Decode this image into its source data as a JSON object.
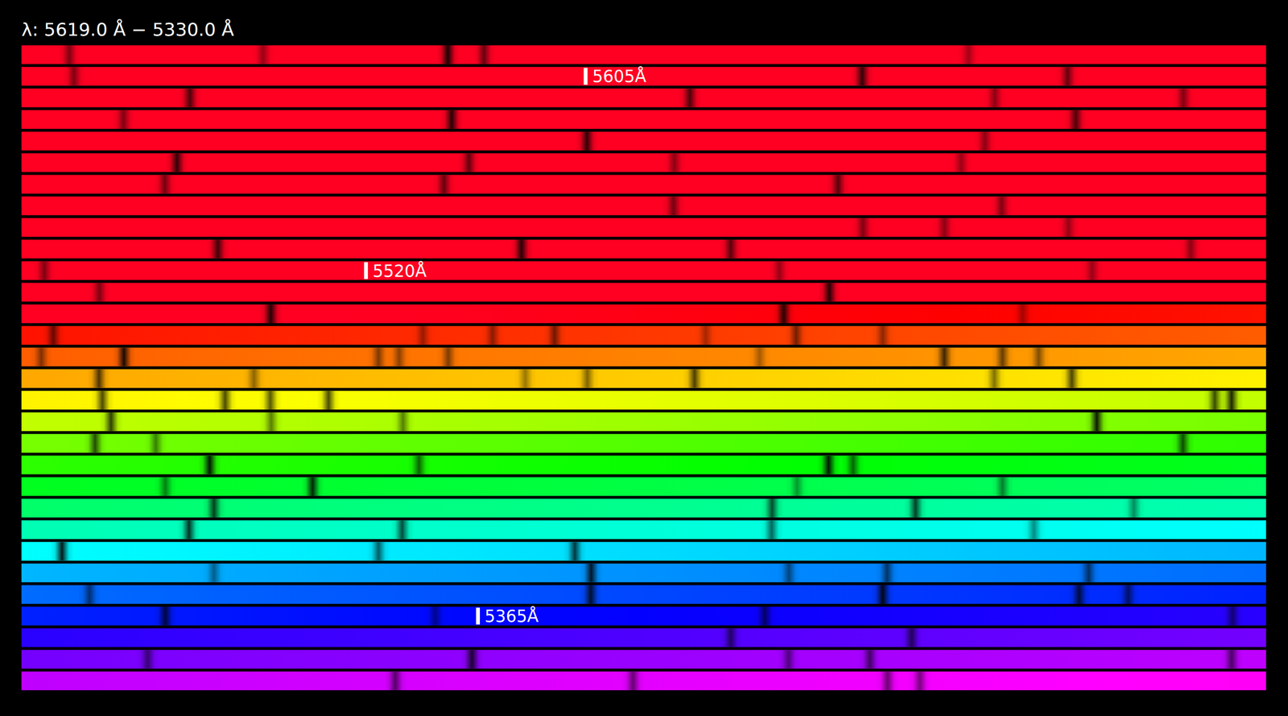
{
  "chart_data": {
    "type": "spectrum",
    "title": "λ: 5619.0 Å − 5330.0 Å",
    "xlim": [
      5619.0,
      5330.0
    ],
    "rows": 30,
    "annotations": [
      {
        "text": "5605Å",
        "wavelength": 5605
      },
      {
        "text": "5520Å",
        "wavelength": 5520
      },
      {
        "text": "5365Å",
        "wavelength": 5365
      }
    ],
    "lines": {
      "wavelengths": [
        5618.63,
        5617.13,
        5615.7,
        5615.42,
        5611.67,
        5608.96,
        5602.86,
        5601.27,
        5598.43,
        5594.56,
        5592.2,
        5590.74,
        5589.31,
        5586.77,
        5581.94,
        5576.09,
        5573.01,
        5569.63,
        5567.37,
        5565.78,
        5563.56,
        5560.09,
        5557.93,
        5554.88,
        5546.52,
        5543.98,
        5535.42,
        5534.79,
        5533.83,
        5530.78,
        5528.43,
        5526.81,
        5523.25,
        5522.49,
        5516.8,
        5514.38,
        5512.43,
        5506.78,
        5501.47,
        5497.5,
        5495.65,
        5493.52,
        5490.66,
        5490.12,
        5489.64,
        5488.47,
        5487.77,
        5487.1,
        5483.98,
        5483.34,
        5481.37,
        5481.21,
        5480.83,
        5478.42,
        5476.99,
        5476.54,
        5476.26,
        5473.9,
        5472.7,
        5470.6,
        5470.12,
        5469.29,
        5466.97,
        5466.37,
        5464.24,
        5463.29,
        5462.94,
        5462.49,
        5455.63,
        5455.5,
        5454.54,
        5453.3,
        5452.28,
        5446.91,
        5445.03,
        5444.56,
        5436.61,
        5434.51,
        5432.89,
        5429.72,
        5429.53,
        5425.22,
        5424.08,
        5420.33,
        5418.74,
        5415.21,
        5410.89,
        5409.78,
        5408.09,
        5405.77,
        5404.12,
        5401.26,
        5399.23,
        5397.12,
        5394.67,
        5393.15,
        5386.31,
        5383.39,
        5381.86,
        5381.1,
        5379.54,
        5377.64,
        5373.76,
        5371.5,
        5369.98,
        5369.6,
        5367.42,
        5365.33,
        5362.78,
        5359.16,
        5353.41,
        5352.01,
        5348.29,
        5345.78,
        5343.33,
        5342.7,
        5339.9,
        5336.74,
        5334.9,
        5332.93,
        5332.68
      ],
      "depths": [
        0.5,
        0.4,
        0.9,
        0.6,
        0.35,
        0.5,
        0.8,
        0.6,
        0.7,
        0.7,
        0.45,
        0.5,
        0.5,
        0.85,
        0.7,
        0.8,
        0.45,
        0.8,
        0.6,
        0.45,
        0.4,
        0.55,
        0.6,
        0.65,
        0.55,
        0.5,
        0.5,
        0.45,
        0.4,
        0.75,
        0.85,
        0.65,
        0.45,
        0.5,
        0.4,
        0.4,
        0.5,
        0.85,
        0.85,
        0.85,
        0.35,
        0.6,
        0.4,
        0.45,
        0.55,
        0.35,
        0.55,
        0.45,
        0.5,
        0.9,
        0.5,
        0.45,
        0.5,
        0.35,
        0.75,
        0.6,
        0.5,
        0.7,
        0.45,
        0.4,
        0.5,
        0.7,
        0.5,
        0.7,
        0.7,
        0.7,
        0.65,
        0.7,
        0.7,
        0.85,
        0.75,
        0.5,
        0.5,
        0.9,
        0.7,
        0.5,
        0.7,
        0.9,
        0.6,
        0.9,
        0.6,
        0.5,
        0.85,
        0.4,
        0.5,
        0.75,
        0.7,
        0.75,
        0.45,
        0.8,
        0.7,
        0.6,
        0.45,
        0.9,
        0.6,
        0.75,
        0.45,
        0.85,
        0.5,
        0.6,
        0.6,
        0.55,
        0.8,
        0.9,
        0.75,
        0.6,
        0.75,
        0.45,
        0.6,
        0.55,
        0.6,
        0.65,
        0.55,
        0.8,
        0.5,
        0.6,
        0.6,
        0.6,
        0.55,
        0.55,
        0.5
      ]
    }
  }
}
